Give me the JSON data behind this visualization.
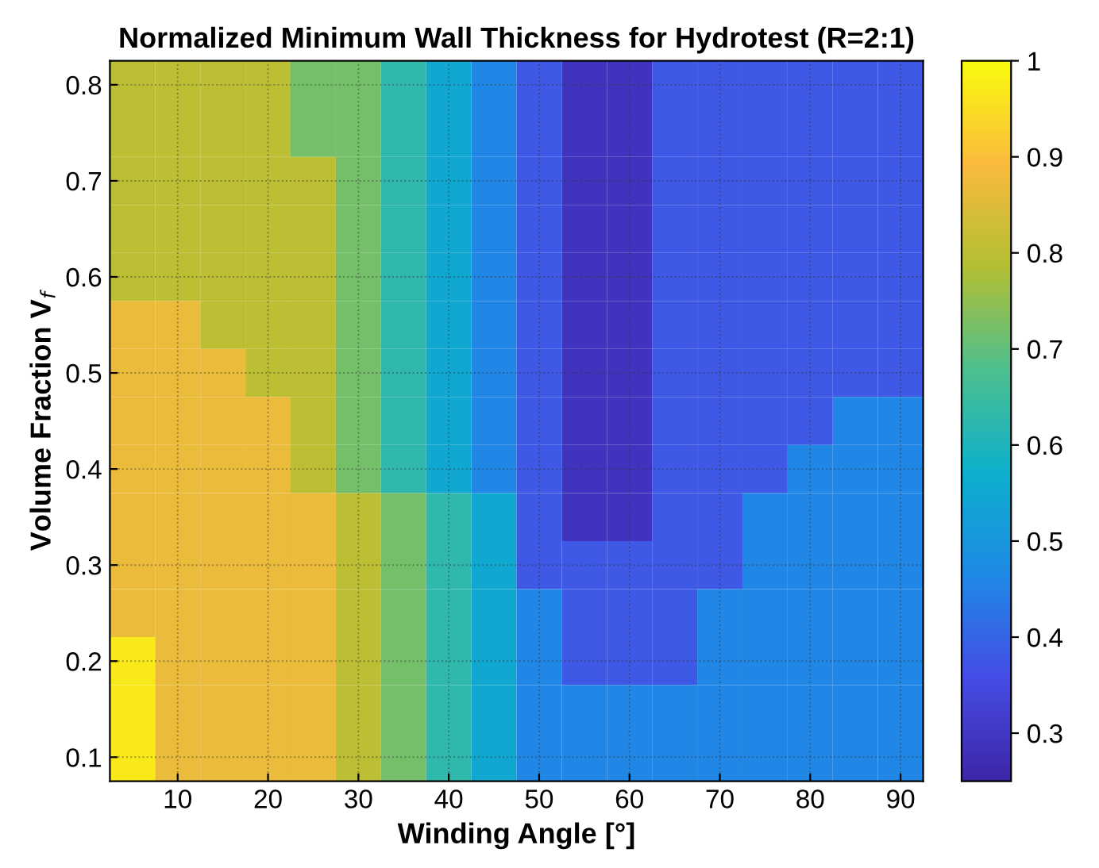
{
  "chart_data": {
    "type": "heatmap",
    "title": "Normalized Minimum Wall Thickness for Hydrotest (R=2:1)",
    "xlabel": "Winding Angle [°]",
    "ylabel": "Volume Fraction V$_{f}$",
    "categories": [
      null,
      "10",
      null,
      "20",
      null,
      "30",
      null,
      "40",
      null,
      "50",
      null,
      "60",
      null,
      "70",
      null,
      "80",
      null,
      "90"
    ],
    "y_categories": [
      "0.8",
      null,
      "0.7",
      null,
      "0.6",
      null,
      "0.5",
      null,
      "0.4",
      null,
      "0.3",
      null,
      "0.2",
      null,
      "0.1"
    ],
    "clim": [
      0.25,
      1
    ],
    "cticks": [
      0.3,
      0.4,
      0.5,
      0.6,
      0.7,
      0.8,
      0.9,
      1
    ],
    "grid": true,
    "cells": [
      [
        0.8,
        0.8,
        0.8,
        0.8,
        0.72,
        0.72,
        0.63,
        0.55,
        0.46,
        0.38,
        0.29,
        0.29,
        0.38,
        0.38,
        0.38,
        0.38,
        0.38,
        0.38
      ],
      [
        0.8,
        0.8,
        0.8,
        0.8,
        0.72,
        0.72,
        0.63,
        0.55,
        0.46,
        0.38,
        0.29,
        0.29,
        0.38,
        0.38,
        0.38,
        0.38,
        0.38,
        0.38
      ],
      [
        0.8,
        0.8,
        0.8,
        0.8,
        0.8,
        0.72,
        0.63,
        0.55,
        0.46,
        0.38,
        0.29,
        0.29,
        0.38,
        0.38,
        0.38,
        0.38,
        0.38,
        0.38
      ],
      [
        0.8,
        0.8,
        0.8,
        0.8,
        0.8,
        0.72,
        0.63,
        0.55,
        0.46,
        0.38,
        0.29,
        0.29,
        0.38,
        0.38,
        0.38,
        0.38,
        0.38,
        0.38
      ],
      [
        0.8,
        0.8,
        0.8,
        0.8,
        0.8,
        0.72,
        0.63,
        0.55,
        0.46,
        0.38,
        0.29,
        0.29,
        0.38,
        0.38,
        0.38,
        0.38,
        0.38,
        0.38
      ],
      [
        0.87,
        0.87,
        0.8,
        0.8,
        0.8,
        0.72,
        0.63,
        0.55,
        0.46,
        0.38,
        0.29,
        0.29,
        0.38,
        0.38,
        0.38,
        0.38,
        0.38,
        0.38
      ],
      [
        0.87,
        0.87,
        0.87,
        0.8,
        0.8,
        0.72,
        0.63,
        0.55,
        0.46,
        0.38,
        0.29,
        0.29,
        0.38,
        0.38,
        0.38,
        0.38,
        0.38,
        0.38
      ],
      [
        0.87,
        0.87,
        0.87,
        0.87,
        0.8,
        0.72,
        0.63,
        0.55,
        0.46,
        0.38,
        0.29,
        0.29,
        0.38,
        0.38,
        0.38,
        0.38,
        0.46,
        0.46
      ],
      [
        0.87,
        0.87,
        0.87,
        0.87,
        0.8,
        0.72,
        0.63,
        0.55,
        0.46,
        0.38,
        0.29,
        0.29,
        0.38,
        0.38,
        0.38,
        0.46,
        0.46,
        0.46
      ],
      [
        0.87,
        0.87,
        0.87,
        0.87,
        0.87,
        0.8,
        0.72,
        0.63,
        0.55,
        0.38,
        0.29,
        0.29,
        0.38,
        0.38,
        0.46,
        0.46,
        0.46,
        0.46
      ],
      [
        0.87,
        0.87,
        0.87,
        0.87,
        0.87,
        0.8,
        0.72,
        0.63,
        0.55,
        0.38,
        0.38,
        0.38,
        0.38,
        0.38,
        0.46,
        0.46,
        0.46,
        0.46
      ],
      [
        0.87,
        0.87,
        0.87,
        0.87,
        0.87,
        0.8,
        0.72,
        0.63,
        0.55,
        0.46,
        0.38,
        0.38,
        0.38,
        0.46,
        0.46,
        0.46,
        0.46,
        0.46
      ],
      [
        0.97,
        0.87,
        0.87,
        0.87,
        0.87,
        0.8,
        0.72,
        0.63,
        0.55,
        0.46,
        0.38,
        0.38,
        0.38,
        0.46,
        0.46,
        0.46,
        0.46,
        0.46
      ],
      [
        0.97,
        0.87,
        0.87,
        0.87,
        0.87,
        0.8,
        0.72,
        0.63,
        0.55,
        0.46,
        0.46,
        0.46,
        0.46,
        0.46,
        0.46,
        0.46,
        0.46,
        0.46
      ],
      [
        0.97,
        0.87,
        0.87,
        0.87,
        0.87,
        0.8,
        0.72,
        0.63,
        0.55,
        0.46,
        0.46,
        0.46,
        0.46,
        0.46,
        0.46,
        0.46,
        0.46,
        0.46
      ]
    ]
  }
}
